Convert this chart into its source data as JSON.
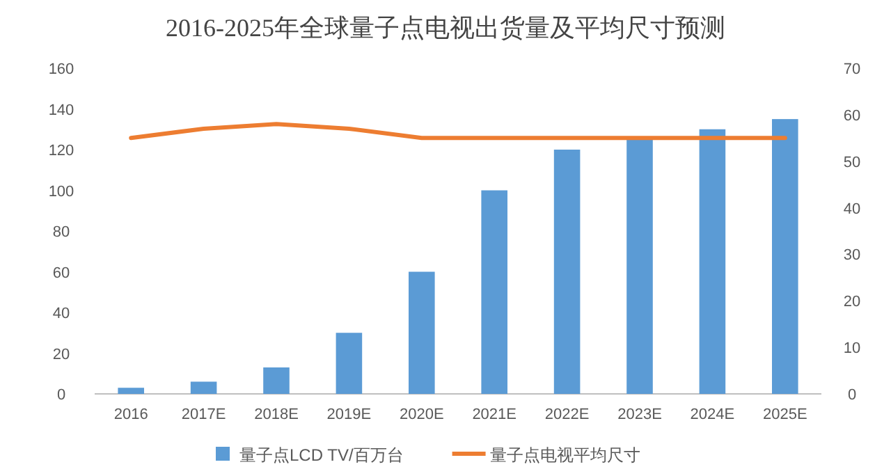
{
  "chart_data": {
    "type": "bar",
    "title": "2016-2025年全球量子点电视出货量及平均尺寸预测",
    "categories": [
      "2016",
      "2017E",
      "2018E",
      "2019E",
      "2020E",
      "2021E",
      "2022E",
      "2023E",
      "2024E",
      "2025E"
    ],
    "series": [
      {
        "name": "量子点LCD TV/百万台",
        "color": "#5b9bd5",
        "values": [
          3,
          6,
          13,
          30,
          60,
          100,
          120,
          125,
          130,
          135
        ]
      },
      {
        "type": "line",
        "name": "量子点电视平均尺寸",
        "color": "#ed7d31",
        "axis": "y2",
        "values": [
          55,
          57,
          58,
          57,
          55,
          55,
          55,
          55,
          55,
          55
        ]
      }
    ],
    "ylim": [
      0,
      160
    ],
    "yticks": [
      0,
      20,
      40,
      60,
      80,
      100,
      120,
      140,
      160
    ],
    "y2lim": [
      0,
      70
    ],
    "y2ticks": [
      0,
      10,
      20,
      30,
      40,
      50,
      60,
      70
    ],
    "legend": "bottom"
  }
}
